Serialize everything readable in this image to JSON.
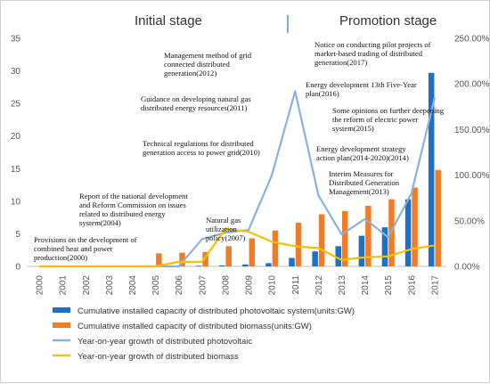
{
  "chart_data": {
    "type": "bar",
    "stages": {
      "left": "Initial stage",
      "right": "Promotion stage"
    },
    "categories": [
      "2000",
      "2001",
      "2002",
      "2003",
      "2004",
      "2005",
      "2006",
      "2007",
      "2008",
      "2009",
      "2010",
      "2011",
      "2012",
      "2013",
      "2014",
      "2015",
      "2016",
      "2017"
    ],
    "bar_series": [
      {
        "name": "Cumulative installed capacity of distributed photovoltaic system(units:GW)",
        "color": "#1f6fc5",
        "values": [
          0,
          0,
          0,
          0,
          0,
          0,
          0,
          0.1,
          0.15,
          0.3,
          0.5,
          1.3,
          2.3,
          3.1,
          4.7,
          6.0,
          10.3,
          29.7
        ]
      },
      {
        "name": "Cumulative installed capacity of distributed biomass(units:GW)",
        "color": "#f07c28",
        "values": [
          0,
          0,
          0,
          0,
          0,
          2.0,
          2.1,
          2.2,
          3.1,
          4.3,
          5.5,
          6.7,
          8.0,
          8.5,
          9.3,
          10.3,
          12.1,
          14.8
        ]
      }
    ],
    "line_series": [
      {
        "name": "Year-on-year growth of distributed photovoltaic",
        "color": "#8ab0dc",
        "values": [
          0,
          0,
          0,
          0,
          0,
          0,
          0,
          30,
          37,
          40,
          100,
          192,
          78,
          35,
          52,
          32,
          80,
          185
        ]
      },
      {
        "name": "Year-on-year growth of distributed biomass",
        "color": "#f2c200",
        "values": [
          0,
          0,
          0,
          0,
          0,
          0,
          5,
          5,
          41,
          38,
          27,
          22,
          20,
          7,
          10,
          11,
          19,
          23
        ]
      }
    ],
    "y_left": {
      "lim": [
        0,
        35
      ],
      "ticks": [
        "0",
        "5",
        "10",
        "15",
        "20",
        "25",
        "30",
        "35"
      ]
    },
    "y_right": {
      "lim": [
        0,
        250
      ],
      "ticks": [
        "0.00%",
        "50.00%",
        "100.00%",
        "150.00%",
        "200.00%",
        "250.00%"
      ]
    },
    "annotations": [
      {
        "lines": [
          "Provisions on the development of",
          "combined heat and power",
          "production(2000)"
        ]
      },
      {
        "lines": [
          "Report of the national development",
          "and Reform Commission on issues",
          "related to distributed energy",
          "system(2004)"
        ]
      },
      {
        "lines": [
          "Natural gas",
          "utilization",
          "policy(2007)"
        ]
      },
      {
        "lines": [
          "Technical regulations for distributed",
          "generation access to power grid(2010)"
        ]
      },
      {
        "lines": [
          "Guidance on developing natural gas",
          "distributed energy resources(2011)"
        ]
      },
      {
        "lines": [
          "Management method of grid",
          "connected distributed",
          "generation(2012)"
        ]
      },
      {
        "lines": [
          "Interim Measures for",
          "Distributed Generation",
          "Management(2013)"
        ]
      },
      {
        "lines": [
          "Energy development strategy",
          "action plan(2014-2020)(2014)"
        ]
      },
      {
        "lines": [
          "Some opinions on further deepening",
          "the reform of electric power",
          "system(2015)"
        ]
      },
      {
        "lines": [
          "Energy development 13th Five-Year",
          "plan(2016)"
        ]
      },
      {
        "lines": [
          "Notice on conducting pilot projects of",
          "market-based trading of distributed",
          "generation(2017)"
        ]
      }
    ],
    "legend": {
      "placement": "bottom",
      "items": [
        "Cumulative installed capacity of distributed photovoltaic system(units:GW)",
        "Cumulative installed capacity of distributed biomass(units:GW)",
        "Year-on-year growth of distributed photovoltaic",
        "Year-on-year growth of distributed biomass"
      ]
    },
    "grid": false
  }
}
